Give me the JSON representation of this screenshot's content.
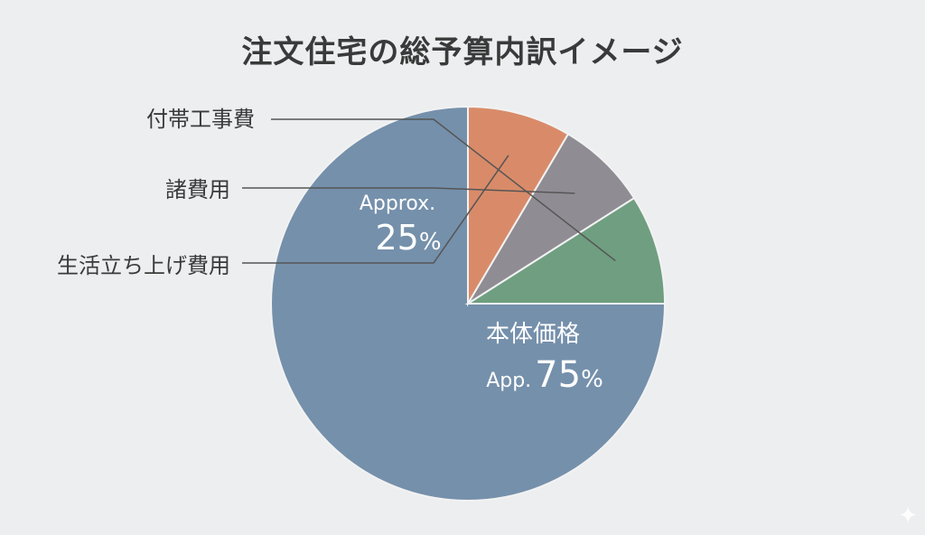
{
  "title": "注文住宅の総予算内訳イメージ",
  "chart_data": {
    "type": "pie",
    "title": "注文住宅の総予算内訳イメージ",
    "slices": [
      {
        "name": "本体価格",
        "value": 75,
        "color": "#7590ab"
      },
      {
        "name": "生活立ち上げ費用",
        "value": 8.5,
        "color": "#d98b69"
      },
      {
        "name": "諸費用",
        "value": 7.5,
        "color": "#8f8d93"
      },
      {
        "name": "付帯工事費",
        "value": 9,
        "color": "#6f9e80"
      }
    ],
    "annotations": {
      "main": {
        "label": "本体価格",
        "prefix": "App.",
        "value": "75",
        "unit": "%"
      },
      "group": {
        "prefix": "Approx.",
        "value": "25",
        "unit": "%"
      }
    }
  }
}
